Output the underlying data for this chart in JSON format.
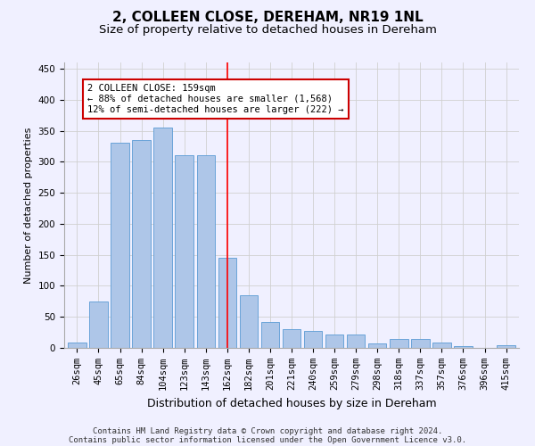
{
  "title": "2, COLLEEN CLOSE, DEREHAM, NR19 1NL",
  "subtitle": "Size of property relative to detached houses in Dereham",
  "xlabel": "Distribution of detached houses by size in Dereham",
  "ylabel": "Number of detached properties",
  "categories": [
    "26sqm",
    "45sqm",
    "65sqm",
    "84sqm",
    "104sqm",
    "123sqm",
    "143sqm",
    "162sqm",
    "182sqm",
    "201sqm",
    "221sqm",
    "240sqm",
    "259sqm",
    "279sqm",
    "298sqm",
    "318sqm",
    "337sqm",
    "357sqm",
    "376sqm",
    "396sqm",
    "415sqm"
  ],
  "values": [
    8,
    75,
    330,
    335,
    355,
    310,
    310,
    145,
    85,
    42,
    30,
    27,
    22,
    22,
    7,
    15,
    14,
    8,
    3,
    0,
    4
  ],
  "bar_color": "#aec6e8",
  "bar_edge_color": "#5b9bd5",
  "red_line_index": 7,
  "annotation_text": "2 COLLEEN CLOSE: 159sqm\n← 88% of detached houses are smaller (1,568)\n12% of semi-detached houses are larger (222) →",
  "annotation_box_color": "#ffffff",
  "annotation_box_edge": "#cc0000",
  "footer_line1": "Contains HM Land Registry data © Crown copyright and database right 2024.",
  "footer_line2": "Contains public sector information licensed under the Open Government Licence v3.0.",
  "ylim": [
    0,
    460
  ],
  "yticks": [
    0,
    50,
    100,
    150,
    200,
    250,
    300,
    350,
    400,
    450
  ],
  "title_fontsize": 11,
  "subtitle_fontsize": 9.5,
  "ylabel_fontsize": 8,
  "xlabel_fontsize": 9,
  "tick_fontsize": 7.5,
  "annotation_fontsize": 7.5,
  "footer_fontsize": 6.5,
  "grid_color": "#d0d0d0",
  "background_color": "#f0f0ff"
}
